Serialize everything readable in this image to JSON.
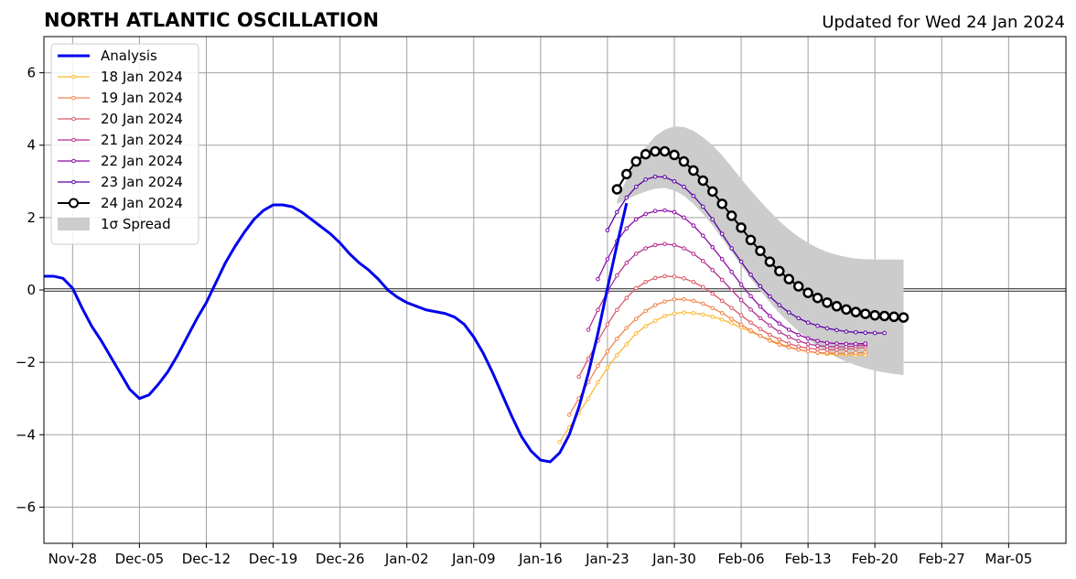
{
  "header": {
    "title": "NORTH ATLANTIC OSCILLATION",
    "updated": "Updated for Wed 24 Jan 2024"
  },
  "chart_data": {
    "type": "line",
    "title": "NORTH ATLANTIC OSCILLATION",
    "xlabel": "",
    "ylabel": "",
    "xlim": [
      "2023-11-25",
      "2024-03-11"
    ],
    "ylim": [
      -7,
      7
    ],
    "grid": true,
    "legend_position": "top-left",
    "x_ticks": [
      {
        "date": "2023-11-28",
        "label": "Nov-28"
      },
      {
        "date": "2023-12-05",
        "label": "Dec-05"
      },
      {
        "date": "2023-12-12",
        "label": "Dec-12"
      },
      {
        "date": "2023-12-19",
        "label": "Dec-19"
      },
      {
        "date": "2023-12-26",
        "label": "Dec-26"
      },
      {
        "date": "2024-01-02",
        "label": "Jan-02"
      },
      {
        "date": "2024-01-09",
        "label": "Jan-09"
      },
      {
        "date": "2024-01-16",
        "label": "Jan-16"
      },
      {
        "date": "2024-01-23",
        "label": "Jan-23"
      },
      {
        "date": "2024-01-30",
        "label": "Jan-30"
      },
      {
        "date": "2024-02-06",
        "label": "Feb-06"
      },
      {
        "date": "2024-02-13",
        "label": "Feb-13"
      },
      {
        "date": "2024-02-20",
        "label": "Feb-20"
      },
      {
        "date": "2024-02-27",
        "label": "Feb-27"
      },
      {
        "date": "2024-03-05",
        "label": "Mar-05"
      }
    ],
    "y_ticks": [
      {
        "value": 6,
        "label": "6"
      },
      {
        "value": 4,
        "label": "4"
      },
      {
        "value": 2,
        "label": "2"
      },
      {
        "value": 0,
        "label": "0"
      },
      {
        "value": -2,
        "label": "−2"
      },
      {
        "value": -4,
        "label": "−4"
      },
      {
        "value": -6,
        "label": "−6"
      }
    ],
    "analysis": {
      "name": "Analysis",
      "color": "#0000ee",
      "start": "2023-11-25",
      "values": [
        0.38,
        0.38,
        0.32,
        0.05,
        -0.5,
        -1.0,
        -1.4,
        -1.85,
        -2.3,
        -2.75,
        -3.0,
        -2.9,
        -2.6,
        -2.25,
        -1.8,
        -1.3,
        -0.8,
        -0.35,
        0.2,
        0.75,
        1.2,
        1.6,
        1.95,
        2.2,
        2.35,
        2.35,
        2.3,
        2.15,
        1.95,
        1.75,
        1.55,
        1.3,
        1.0,
        0.75,
        0.55,
        0.3,
        0.0,
        -0.2,
        -0.35,
        -0.45,
        -0.55,
        -0.6,
        -0.65,
        -0.75,
        -0.95,
        -1.3,
        -1.75,
        -2.3,
        -2.9,
        -3.5,
        -4.05,
        -4.45,
        -4.7,
        -4.75,
        -4.5,
        -4.0,
        -3.25,
        -2.3,
        -1.2,
        0.05,
        1.25,
        2.4
      ]
    },
    "series": [
      {
        "name": "18 Jan 2024",
        "color": "#fcb732",
        "start": "2024-01-18",
        "values": [
          -4.2,
          -3.8,
          -3.4,
          -3.0,
          -2.55,
          -2.15,
          -1.8,
          -1.5,
          -1.2,
          -1.0,
          -0.85,
          -0.72,
          -0.65,
          -0.62,
          -0.64,
          -0.68,
          -0.74,
          -0.82,
          -0.92,
          -1.04,
          -1.15,
          -1.27,
          -1.38,
          -1.48,
          -1.57,
          -1.64,
          -1.7,
          -1.74,
          -1.77,
          -1.78,
          -1.79,
          -1.8,
          -1.8
        ]
      },
      {
        "name": "19 Jan 2024",
        "color": "#f1844b",
        "start": "2024-01-19",
        "values": [
          -3.45,
          -3.0,
          -2.55,
          -2.1,
          -1.7,
          -1.35,
          -1.05,
          -0.8,
          -0.58,
          -0.42,
          -0.32,
          -0.26,
          -0.26,
          -0.3,
          -0.38,
          -0.5,
          -0.64,
          -0.8,
          -0.96,
          -1.12,
          -1.27,
          -1.4,
          -1.51,
          -1.59,
          -1.65,
          -1.7,
          -1.73,
          -1.74,
          -1.75,
          -1.75,
          -1.74,
          -1.72
        ]
      },
      {
        "name": "20 Jan 2024",
        "color": "#da5a68",
        "start": "2024-01-20",
        "values": [
          -2.4,
          -1.9,
          -1.4,
          -0.95,
          -0.55,
          -0.22,
          0.05,
          0.22,
          0.33,
          0.38,
          0.37,
          0.32,
          0.22,
          0.08,
          -0.1,
          -0.3,
          -0.5,
          -0.7,
          -0.9,
          -1.08,
          -1.24,
          -1.37,
          -1.48,
          -1.56,
          -1.61,
          -1.64,
          -1.65,
          -1.65,
          -1.64,
          -1.62,
          -1.58
        ]
      },
      {
        "name": "21 Jan 2024",
        "color": "#b32f8c",
        "start": "2024-01-21",
        "values": [
          -1.1,
          -0.55,
          -0.05,
          0.4,
          0.75,
          1.0,
          1.15,
          1.24,
          1.27,
          1.24,
          1.15,
          1.0,
          0.8,
          0.55,
          0.28,
          0.0,
          -0.28,
          -0.54,
          -0.78,
          -0.98,
          -1.16,
          -1.3,
          -1.41,
          -1.49,
          -1.54,
          -1.56,
          -1.57,
          -1.57,
          -1.55,
          -1.52
        ]
      },
      {
        "name": "22 Jan 2024",
        "color": "#8b0aa5",
        "start": "2024-01-22",
        "values": [
          0.3,
          0.85,
          1.35,
          1.7,
          1.95,
          2.1,
          2.18,
          2.2,
          2.15,
          2.0,
          1.78,
          1.5,
          1.18,
          0.85,
          0.5,
          0.15,
          -0.17,
          -0.46,
          -0.72,
          -0.93,
          -1.1,
          -1.24,
          -1.34,
          -1.41,
          -1.46,
          -1.48,
          -1.49,
          -1.49,
          -1.48
        ]
      },
      {
        "name": "23 Jan 2024",
        "color": "#5a02a3",
        "start": "2024-01-23",
        "values": [
          1.65,
          2.15,
          2.55,
          2.85,
          3.05,
          3.13,
          3.12,
          3.0,
          2.85,
          2.6,
          2.3,
          1.95,
          1.55,
          1.15,
          0.78,
          0.42,
          0.1,
          -0.18,
          -0.42,
          -0.62,
          -0.78,
          -0.9,
          -0.99,
          -1.06,
          -1.11,
          -1.15,
          -1.17,
          -1.18,
          -1.19,
          -1.19
        ]
      },
      {
        "name": "24 Jan 2024",
        "color": "#000000",
        "start": "2024-01-24",
        "values": [
          2.78,
          3.2,
          3.55,
          3.75,
          3.83,
          3.83,
          3.73,
          3.55,
          3.3,
          3.02,
          2.72,
          2.38,
          2.05,
          1.72,
          1.38,
          1.08,
          0.78,
          0.52,
          0.3,
          0.1,
          -0.08,
          -0.22,
          -0.35,
          -0.45,
          -0.54,
          -0.61,
          -0.66,
          -0.7,
          -0.72,
          -0.74,
          -0.76
        ]
      }
    ],
    "spread": {
      "name": "1σ Spread",
      "color": "#cccccc",
      "start": "2024-01-24",
      "upper": [
        2.48,
        3.05,
        3.55,
        3.95,
        4.25,
        4.43,
        4.52,
        4.5,
        4.4,
        4.22,
        4.0,
        3.72,
        3.4,
        3.07,
        2.75,
        2.45,
        2.17,
        1.9,
        1.67,
        1.47,
        1.3,
        1.16,
        1.05,
        0.97,
        0.91,
        0.87,
        0.85,
        0.84,
        0.84,
        0.84,
        0.84
      ],
      "lower": [
        2.38,
        2.5,
        2.62,
        2.72,
        2.8,
        2.82,
        2.75,
        2.6,
        2.38,
        2.1,
        1.78,
        1.42,
        1.05,
        0.68,
        0.32,
        -0.02,
        -0.34,
        -0.64,
        -0.9,
        -1.14,
        -1.36,
        -1.55,
        -1.72,
        -1.86,
        -1.98,
        -2.08,
        -2.16,
        -2.23,
        -2.28,
        -2.32,
        -2.35
      ]
    }
  }
}
